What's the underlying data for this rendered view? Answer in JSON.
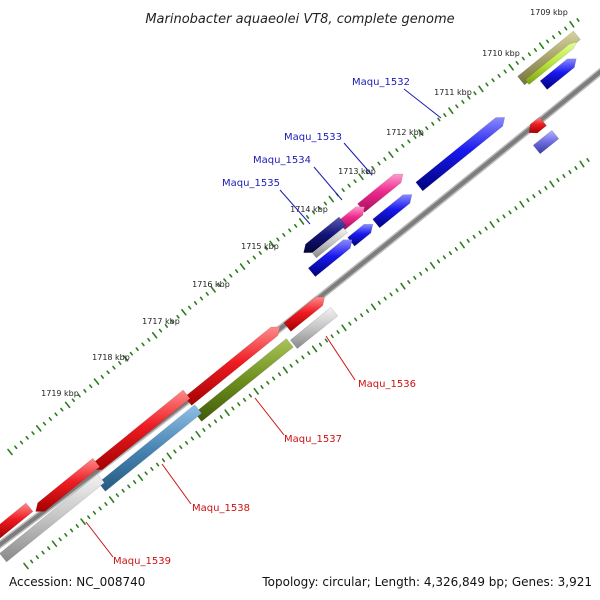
{
  "title": "Marinobacter aquaeolei VT8, complete genome",
  "footer": {
    "accession": "Accession: NC_008740",
    "summary": "Topology: circular; Length: 4,326,849 bp; Genes: 3,921"
  },
  "colors": {
    "backbone": "#7d7d7d",
    "tick": "#2e7d1f",
    "up_label": "#1c1cb4",
    "down_label": "#cc1111",
    "red": "#e8141a",
    "blue": "#1515e8",
    "navy": "#12127a",
    "pink": "#ee2a8e",
    "gray": "#b9b9b9",
    "olive": "#6e8f1e",
    "steel": "#4a86b4",
    "khaki": "#a7a46a",
    "lime": "#b8e63a",
    "lavender": "#6c6ce0"
  },
  "kbp_labels": [
    "1709 kbp",
    "1710 kbp",
    "1711 kbp",
    "1712 kbp",
    "1713 kbp",
    "1714 kbp",
    "1715 kbp",
    "1716 kbp",
    "1717 kbp",
    "1718 kbp",
    "1719 kbp"
  ],
  "upper_genes": [
    "Maqu_1532",
    "Maqu_1533",
    "Maqu_1534",
    "Maqu_1535"
  ],
  "lower_genes": [
    "Maqu_1536",
    "Maqu_1537",
    "Maqu_1538",
    "Maqu_1539"
  ]
}
